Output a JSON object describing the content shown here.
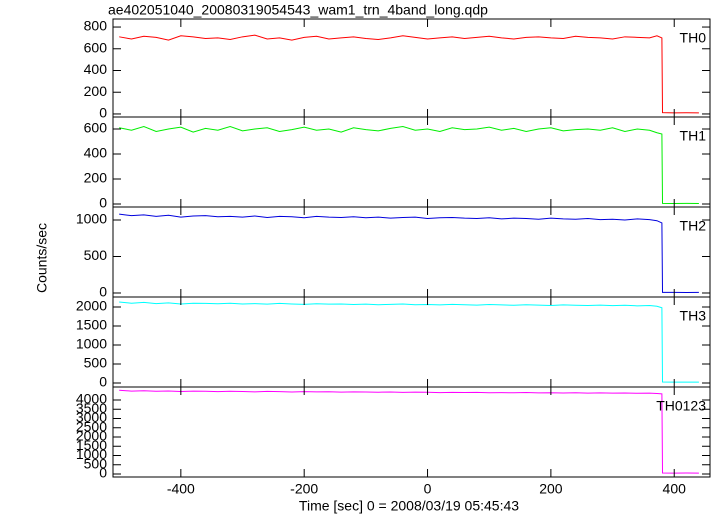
{
  "title": "ae402051040_20080319054543_wam1_trn_4band_long.qdp",
  "xlabel": "Time [sec] 0 = 2008/03/19 05:45:43",
  "ylabel": "Counts/sec",
  "xlim": [
    -510,
    458
  ],
  "xticks": [
    -400,
    -200,
    0,
    200,
    400
  ],
  "chart_data": [
    {
      "type": "line",
      "ylim": [
        -28,
        874
      ],
      "yticks": [
        0,
        200,
        400,
        600,
        800
      ],
      "x": [
        -500,
        -480,
        -460,
        -440,
        -420,
        -400,
        -380,
        -360,
        -340,
        -320,
        -300,
        -280,
        -260,
        -240,
        -220,
        -200,
        -180,
        -160,
        -140,
        -120,
        -100,
        -80,
        -60,
        -40,
        -20,
        0,
        20,
        40,
        60,
        80,
        100,
        120,
        140,
        160,
        180,
        200,
        220,
        240,
        260,
        280,
        300,
        320,
        340,
        360,
        372,
        380,
        381,
        400,
        420,
        440
      ],
      "series": [
        {
          "name": "TH0",
          "color": "#ff0000",
          "values": [
            710,
            690,
            715,
            705,
            680,
            720,
            710,
            695,
            700,
            685,
            710,
            725,
            690,
            700,
            680,
            705,
            715,
            690,
            700,
            710,
            695,
            685,
            700,
            720,
            705,
            690,
            700,
            710,
            695,
            705,
            715,
            700,
            690,
            705,
            710,
            700,
            695,
            715,
            705,
            700,
            690,
            710,
            705,
            700,
            720,
            700,
            12,
            10,
            11,
            10
          ]
        }
      ]
    },
    {
      "type": "line",
      "ylim": [
        -24,
        696
      ],
      "yticks": [
        0,
        200,
        400,
        600
      ],
      "x": [
        -500,
        -480,
        -460,
        -440,
        -420,
        -400,
        -380,
        -360,
        -340,
        -320,
        -300,
        -280,
        -260,
        -240,
        -220,
        -200,
        -180,
        -160,
        -140,
        -120,
        -100,
        -80,
        -60,
        -40,
        -20,
        0,
        20,
        40,
        60,
        80,
        100,
        120,
        140,
        160,
        180,
        200,
        220,
        240,
        260,
        280,
        300,
        320,
        340,
        360,
        372,
        380,
        381,
        400,
        420,
        440
      ],
      "series": [
        {
          "name": "TH1",
          "color": "#00ee00",
          "values": [
            610,
            590,
            620,
            580,
            600,
            615,
            575,
            605,
            590,
            620,
            585,
            600,
            610,
            580,
            595,
            615,
            590,
            600,
            575,
            610,
            595,
            585,
            605,
            620,
            590,
            600,
            580,
            610,
            595,
            600,
            615,
            590,
            605,
            580,
            600,
            610,
            585,
            595,
            600,
            590,
            610,
            580,
            600,
            590,
            570,
            560,
            5,
            4,
            5,
            4
          ]
        }
      ]
    },
    {
      "type": "line",
      "ylim": [
        -55,
        1178
      ],
      "yticks": [
        0,
        500,
        1000
      ],
      "x": [
        -500,
        -480,
        -460,
        -440,
        -420,
        -400,
        -380,
        -360,
        -340,
        -320,
        -300,
        -280,
        -260,
        -240,
        -220,
        -200,
        -180,
        -160,
        -140,
        -120,
        -100,
        -80,
        -60,
        -40,
        -20,
        0,
        20,
        40,
        60,
        80,
        100,
        120,
        140,
        160,
        180,
        200,
        220,
        240,
        260,
        280,
        300,
        320,
        340,
        360,
        372,
        380,
        381,
        400,
        420,
        440
      ],
      "series": [
        {
          "name": "TH2",
          "color": "#0000dd",
          "values": [
            1080,
            1060,
            1070,
            1050,
            1065,
            1040,
            1055,
            1060,
            1045,
            1050,
            1040,
            1055,
            1035,
            1050,
            1045,
            1030,
            1050,
            1040,
            1035,
            1045,
            1030,
            1040,
            1025,
            1035,
            1040,
            1020,
            1030,
            1035,
            1025,
            1020,
            1030,
            1015,
            1025,
            1020,
            1010,
            1025,
            1015,
            1010,
            1020,
            1005,
            1010,
            1000,
            1015,
            1005,
            990,
            960,
            8,
            8,
            7,
            8
          ]
        }
      ]
    },
    {
      "type": "line",
      "ylim": [
        -105,
        2263
      ],
      "yticks": [
        0,
        500,
        1000,
        1500,
        2000
      ],
      "x": [
        -500,
        -480,
        -460,
        -440,
        -420,
        -400,
        -380,
        -360,
        -340,
        -320,
        -300,
        -280,
        -260,
        -240,
        -220,
        -200,
        -180,
        -160,
        -140,
        -120,
        -100,
        -80,
        -60,
        -40,
        -20,
        0,
        20,
        40,
        60,
        80,
        100,
        120,
        140,
        160,
        180,
        200,
        220,
        240,
        260,
        280,
        300,
        320,
        340,
        360,
        372,
        380,
        381,
        400,
        420,
        440
      ],
      "series": [
        {
          "name": "TH3",
          "color": "#00ffff",
          "values": [
            2130,
            2100,
            2120,
            2090,
            2110,
            2080,
            2100,
            2095,
            2085,
            2100,
            2080,
            2090,
            2075,
            2095,
            2080,
            2070,
            2085,
            2075,
            2080,
            2065,
            2075,
            2060,
            2070,
            2080,
            2060,
            2065,
            2055,
            2070,
            2060,
            2050,
            2065,
            2055,
            2045,
            2060,
            2050,
            2040,
            2055,
            2045,
            2040,
            2050,
            2035,
            2045,
            2030,
            2040,
            2020,
            1980,
            25,
            22,
            24,
            23
          ]
        }
      ]
    },
    {
      "type": "line",
      "ylim": [
        -162,
        4703
      ],
      "yticks": [
        0,
        500,
        1000,
        1500,
        2000,
        2500,
        3000,
        3500,
        4000
      ],
      "x": [
        -500,
        -480,
        -460,
        -440,
        -420,
        -400,
        -380,
        -360,
        -340,
        -320,
        -300,
        -280,
        -260,
        -240,
        -220,
        -200,
        -180,
        -160,
        -140,
        -120,
        -100,
        -80,
        -60,
        -40,
        -20,
        0,
        20,
        40,
        60,
        80,
        100,
        120,
        140,
        160,
        180,
        200,
        220,
        240,
        260,
        280,
        300,
        320,
        340,
        360,
        372,
        380,
        381,
        400,
        420,
        440
      ],
      "series": [
        {
          "name": "TH0123",
          "color": "#ff00ff",
          "values": [
            4530,
            4480,
            4500,
            4470,
            4490,
            4460,
            4480,
            4470,
            4450,
            4475,
            4460,
            4440,
            4465,
            4450,
            4430,
            4455,
            4440,
            4445,
            4425,
            4440,
            4430,
            4420,
            4435,
            4410,
            4425,
            4420,
            4400,
            4415,
            4405,
            4410,
            4395,
            4400,
            4390,
            4405,
            4385,
            4395,
            4380,
            4390,
            4375,
            4385,
            4370,
            4380,
            4365,
            4375,
            4350,
            4330,
            55,
            50,
            52,
            50
          ]
        }
      ]
    }
  ]
}
